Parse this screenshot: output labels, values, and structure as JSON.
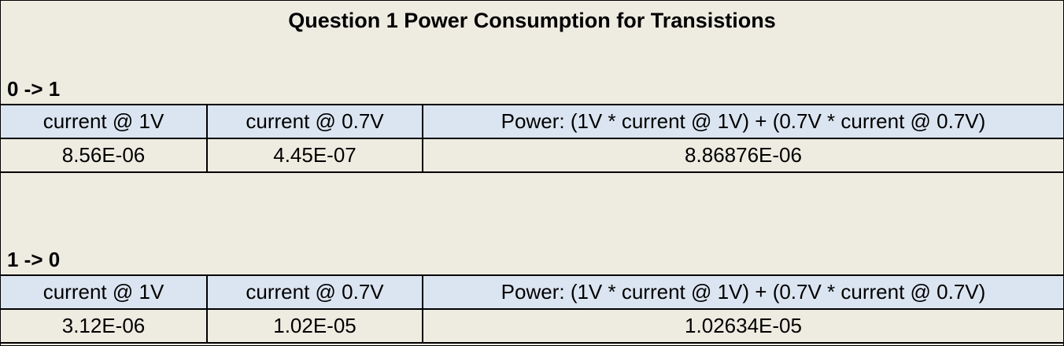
{
  "title": "Question 1 Power Consumption for Transistions",
  "sections": [
    {
      "label": "0 -> 1",
      "headers": [
        "current @ 1V",
        "current @ 0.7V",
        "Power: (1V * current @ 1V) + (0.7V * current @ 0.7V)"
      ],
      "values": [
        "8.56E-06",
        "4.45E-07",
        "8.86876E-06"
      ]
    },
    {
      "label": "1 -> 0",
      "headers": [
        "current @ 1V",
        "current @ 0.7V",
        "Power: (1V * current @ 1V) + (0.7V * current @ 0.7V)"
      ],
      "values": [
        "3.12E-06",
        "1.02E-05",
        "1.02634E-05"
      ]
    }
  ],
  "colors": {
    "background": "#eeece1",
    "header_fill": "#dbe5f1",
    "grid": "#000000"
  }
}
